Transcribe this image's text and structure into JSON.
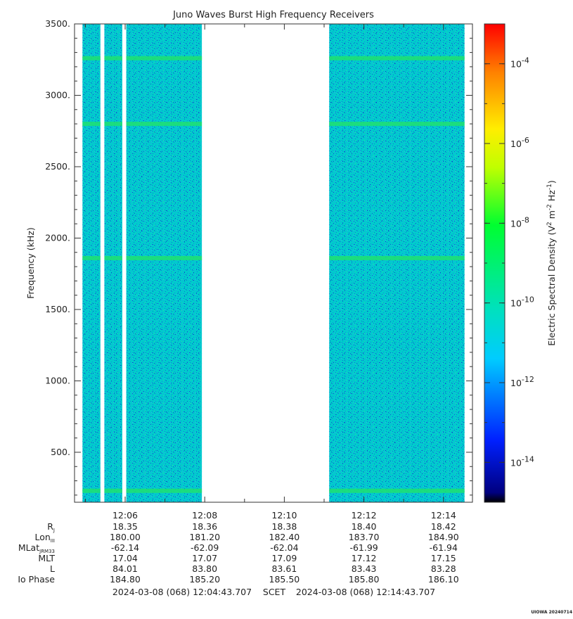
{
  "chart_data": {
    "type": "heatmap",
    "title": "Juno Waves Burst High Frequency Receivers",
    "ylabel": "Frequency (kHz)",
    "ylim": [
      150,
      3500
    ],
    "y_ticks": [
      {
        "value": 500,
        "label": "500."
      },
      {
        "value": 1000,
        "label": "1000."
      },
      {
        "value": 1500,
        "label": "1500."
      },
      {
        "value": 2000,
        "label": "2000."
      },
      {
        "value": 2500,
        "label": "2500."
      },
      {
        "value": 3000,
        "label": "3000."
      },
      {
        "value": 3500,
        "label": "3500."
      }
    ],
    "xlim_minutes": [
      0,
      10.0
    ],
    "x_ticks": [
      {
        "value": 1.272,
        "label": "12:06"
      },
      {
        "value": 3.272,
        "label": "12:08"
      },
      {
        "value": 5.272,
        "label": "12:10"
      },
      {
        "value": 7.272,
        "label": "12:12"
      },
      {
        "value": 9.272,
        "label": "12:14"
      }
    ],
    "data_segments_minutes": [
      [
        0.2,
        0.65
      ],
      [
        0.75,
        1.2
      ],
      [
        1.3,
        3.2
      ],
      [
        6.4,
        9.8
      ]
    ],
    "emission_lines_khz": [
      230,
      1860,
      2800,
      3260
    ],
    "colorbar": {
      "label": "Electric Spectral Density (V² m⁻² Hz⁻¹)",
      "scale": "log",
      "range_exponents": [
        -15,
        -3
      ],
      "ticks": [
        {
          "exp": -4,
          "label": "10-4"
        },
        {
          "exp": -6,
          "label": "10-6"
        },
        {
          "exp": -8,
          "label": "10-8"
        },
        {
          "exp": -10,
          "label": "10-10"
        },
        {
          "exp": -12,
          "label": "10-12"
        },
        {
          "exp": -14,
          "label": "10-14"
        }
      ],
      "background_level_exponent": -12
    },
    "ephemeris": {
      "labels": [
        "RJ",
        "LonIII",
        "MLatJRM33",
        "MLT",
        "L",
        "Io Phase"
      ],
      "label_main": [
        "R",
        "Lon",
        "MLat",
        "MLT",
        "L",
        "Io Phase"
      ],
      "label_sub": [
        "J",
        "III",
        "JRM33",
        "",
        "",
        ""
      ],
      "columns": [
        [
          "18.35",
          "180.00",
          "-62.14",
          "17.04",
          "84.01",
          "184.80"
        ],
        [
          "18.36",
          "181.20",
          "-62.09",
          "17.07",
          "83.80",
          "185.20"
        ],
        [
          "18.38",
          "182.40",
          "-62.04",
          "17.09",
          "83.61",
          "185.50"
        ],
        [
          "18.40",
          "183.70",
          "-61.99",
          "17.12",
          "83.43",
          "185.80"
        ],
        [
          "18.42",
          "184.90",
          "-61.94",
          "17.15",
          "83.28",
          "186.10"
        ]
      ]
    },
    "footer": {
      "start": "2024-03-08 (068) 12:04:43.707",
      "mid": "SCET",
      "end": "2024-03-08 (068) 12:14:43.707"
    },
    "credit": "UIOWA 20240714",
    "colors": {
      "background": "#00cccc",
      "lines": "#20e070",
      "speckle_blue": "#1060e0"
    }
  }
}
